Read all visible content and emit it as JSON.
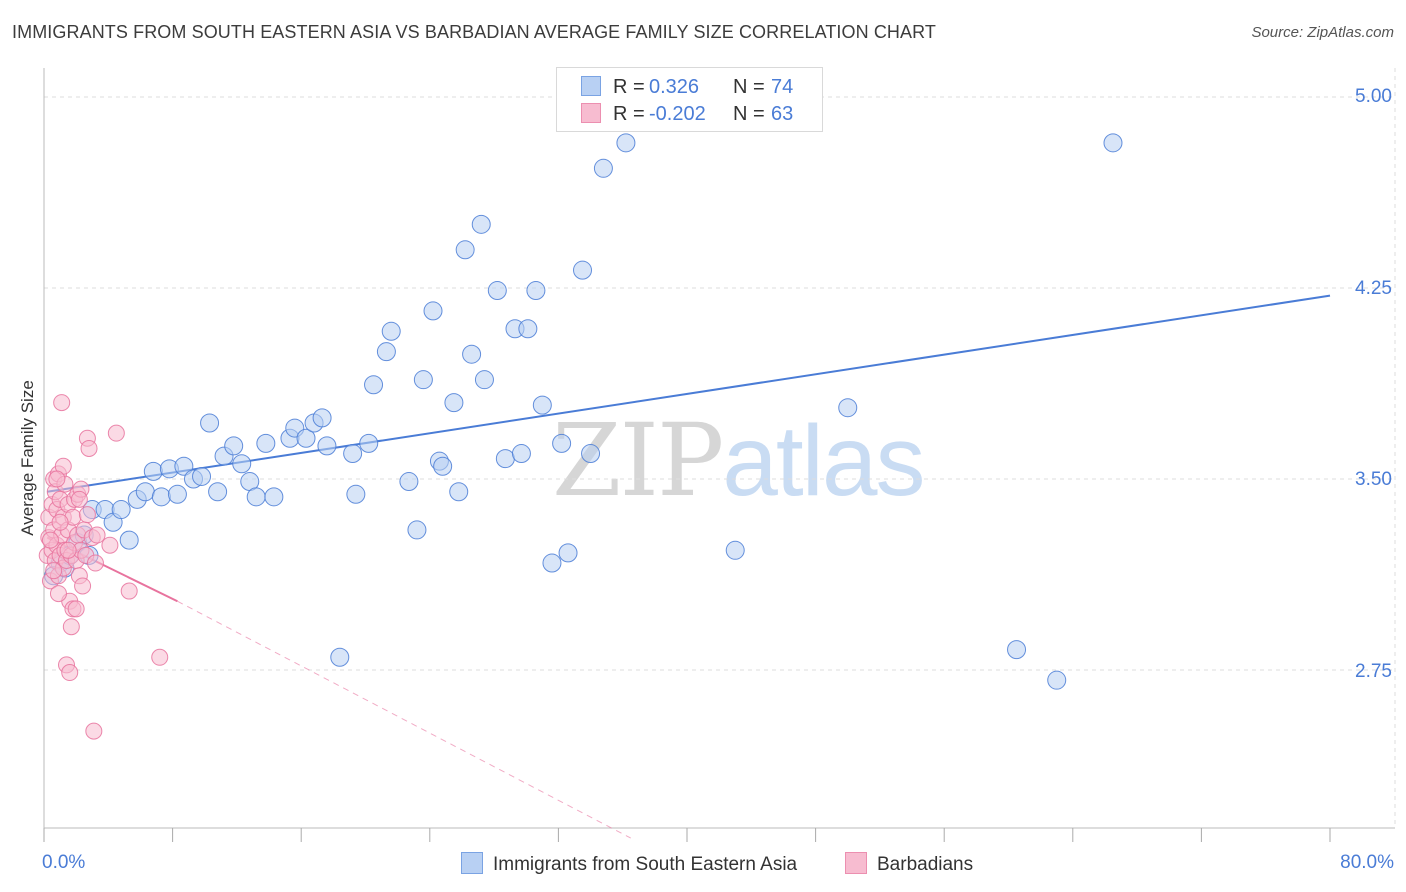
{
  "title": "IMMIGRANTS FROM SOUTH EASTERN ASIA VS BARBADIAN AVERAGE FAMILY SIZE CORRELATION CHART",
  "source": "Source: ZipAtlas.com",
  "watermark": {
    "zip": "ZIP",
    "atlas": "atlas"
  },
  "colors": {
    "blue": "#4a7cd6",
    "blue_fill": "#b8d0f3",
    "pink": "#e8739e",
    "pink_fill": "#f7bcd0",
    "grid": "#dddddd"
  },
  "legend": {
    "rows": [
      {
        "r_label": "R =",
        "r_value": " 0.326",
        "n_label": "N =",
        "n_value": "74"
      },
      {
        "r_label": "R =",
        "r_value": "-0.202",
        "n_label": "N =",
        "n_value": "63"
      }
    ]
  },
  "chart_data": {
    "type": "scatter",
    "title": "IMMIGRANTS FROM SOUTH EASTERN ASIA VS BARBADIAN AVERAGE FAMILY SIZE CORRELATION CHART",
    "xlabel": "",
    "ylabel": "Average Family Size",
    "xlim": [
      0,
      80
    ],
    "ylim": [
      2.25,
      5.08
    ],
    "x_tick_labels": [
      "0.0%",
      "80.0%"
    ],
    "y_ticks": [
      2.75,
      3.5,
      4.25,
      5.0
    ],
    "y_tick_labels": [
      "2.75",
      "3.50",
      "4.25",
      "5.00"
    ],
    "grid": true,
    "series": [
      {
        "name": "Immigrants from South Eastern Asia",
        "color": "blue",
        "trend": {
          "x": [
            0.2,
            80
          ],
          "y": [
            3.45,
            4.22
          ],
          "dashed_to": null
        },
        "points": [
          [
            1.0,
            3.17
          ],
          [
            1.3,
            3.15
          ],
          [
            1.6,
            3.2
          ],
          [
            2.1,
            3.25
          ],
          [
            2.5,
            3.28
          ],
          [
            3.0,
            3.38
          ],
          [
            3.8,
            3.38
          ],
          [
            4.3,
            3.33
          ],
          [
            4.8,
            3.38
          ],
          [
            5.3,
            3.26
          ],
          [
            5.8,
            3.42
          ],
          [
            6.3,
            3.45
          ],
          [
            6.8,
            3.53
          ],
          [
            7.3,
            3.43
          ],
          [
            7.8,
            3.54
          ],
          [
            8.3,
            3.44
          ],
          [
            8.7,
            3.55
          ],
          [
            9.3,
            3.5
          ],
          [
            9.8,
            3.51
          ],
          [
            10.3,
            3.72
          ],
          [
            10.8,
            3.45
          ],
          [
            11.2,
            3.59
          ],
          [
            11.8,
            3.63
          ],
          [
            12.3,
            3.56
          ],
          [
            12.8,
            3.49
          ],
          [
            13.2,
            3.43
          ],
          [
            13.8,
            3.64
          ],
          [
            14.3,
            3.43
          ],
          [
            15.3,
            3.66
          ],
          [
            15.6,
            3.7
          ],
          [
            16.3,
            3.66
          ],
          [
            16.8,
            3.72
          ],
          [
            17.3,
            3.74
          ],
          [
            17.6,
            3.63
          ],
          [
            18.4,
            2.8
          ],
          [
            19.2,
            3.6
          ],
          [
            19.4,
            3.44
          ],
          [
            20.2,
            3.64
          ],
          [
            20.5,
            3.87
          ],
          [
            21.3,
            4.0
          ],
          [
            21.6,
            4.08
          ],
          [
            22.7,
            3.49
          ],
          [
            23.2,
            3.3
          ],
          [
            23.6,
            3.89
          ],
          [
            24.2,
            4.16
          ],
          [
            24.6,
            3.57
          ],
          [
            24.8,
            3.55
          ],
          [
            25.5,
            3.8
          ],
          [
            25.8,
            3.45
          ],
          [
            26.2,
            4.4
          ],
          [
            26.6,
            3.99
          ],
          [
            27.2,
            4.5
          ],
          [
            27.4,
            3.89
          ],
          [
            28.2,
            4.24
          ],
          [
            28.7,
            3.58
          ],
          [
            29.3,
            4.09
          ],
          [
            29.7,
            3.6
          ],
          [
            30.1,
            4.09
          ],
          [
            30.6,
            4.24
          ],
          [
            31.0,
            3.79
          ],
          [
            31.6,
            3.17
          ],
          [
            32.2,
            3.64
          ],
          [
            32.6,
            3.21
          ],
          [
            33.5,
            4.32
          ],
          [
            34.0,
            3.6
          ],
          [
            34.8,
            4.72
          ],
          [
            36.2,
            4.82
          ],
          [
            43.0,
            3.22
          ],
          [
            50.0,
            3.78
          ],
          [
            60.5,
            2.83
          ],
          [
            63.0,
            2.71
          ],
          [
            66.5,
            4.82
          ],
          [
            0.6,
            3.12
          ],
          [
            2.8,
            3.2
          ]
        ]
      },
      {
        "name": "Barbadians",
        "color": "pink",
        "trend": {
          "x": [
            0.2,
            8.3
          ],
          "y": [
            3.27,
            3.02
          ],
          "dashed_to": [
            36.5,
            2.09
          ]
        },
        "points": [
          [
            0.2,
            3.2
          ],
          [
            0.3,
            3.35
          ],
          [
            0.3,
            3.27
          ],
          [
            0.4,
            3.1
          ],
          [
            0.5,
            3.22
          ],
          [
            0.5,
            3.4
          ],
          [
            0.6,
            3.5
          ],
          [
            0.6,
            3.3
          ],
          [
            0.7,
            3.18
          ],
          [
            0.7,
            3.45
          ],
          [
            0.8,
            3.24
          ],
          [
            0.8,
            3.38
          ],
          [
            0.9,
            3.12
          ],
          [
            0.9,
            3.52
          ],
          [
            1.0,
            3.2
          ],
          [
            1.0,
            3.42
          ],
          [
            1.1,
            3.28
          ],
          [
            1.1,
            3.8
          ],
          [
            1.2,
            3.15
          ],
          [
            1.2,
            3.35
          ],
          [
            1.3,
            3.22
          ],
          [
            1.3,
            3.48
          ],
          [
            1.4,
            3.18
          ],
          [
            1.4,
            2.77
          ],
          [
            1.5,
            3.3
          ],
          [
            1.5,
            3.4
          ],
          [
            1.6,
            3.02
          ],
          [
            1.6,
            2.74
          ],
          [
            1.7,
            3.2
          ],
          [
            1.7,
            2.92
          ],
          [
            1.8,
            3.35
          ],
          [
            1.8,
            2.99
          ],
          [
            1.9,
            3.25
          ],
          [
            1.9,
            3.42
          ],
          [
            2.0,
            3.18
          ],
          [
            2.0,
            2.99
          ],
          [
            2.1,
            3.28
          ],
          [
            2.1,
            3.44
          ],
          [
            2.2,
            3.12
          ],
          [
            2.3,
            3.22
          ],
          [
            2.3,
            3.46
          ],
          [
            2.4,
            3.08
          ],
          [
            2.5,
            3.3
          ],
          [
            2.6,
            3.2
          ],
          [
            2.7,
            3.66
          ],
          [
            2.7,
            3.36
          ],
          [
            2.8,
            3.62
          ],
          [
            3.0,
            3.27
          ],
          [
            3.1,
            2.51
          ],
          [
            3.2,
            3.17
          ],
          [
            3.3,
            3.28
          ],
          [
            4.1,
            3.24
          ],
          [
            4.5,
            3.68
          ],
          [
            5.3,
            3.06
          ],
          [
            7.2,
            2.8
          ],
          [
            0.4,
            3.26
          ],
          [
            0.9,
            3.05
          ],
          [
            1.2,
            3.55
          ],
          [
            0.6,
            3.14
          ],
          [
            1.5,
            3.22
          ],
          [
            0.8,
            3.5
          ],
          [
            2.2,
            3.42
          ],
          [
            1.0,
            3.33
          ]
        ]
      }
    ]
  },
  "bottom_legend": {
    "series1": "Immigrants from South Eastern Asia",
    "series2": "Barbadians"
  }
}
